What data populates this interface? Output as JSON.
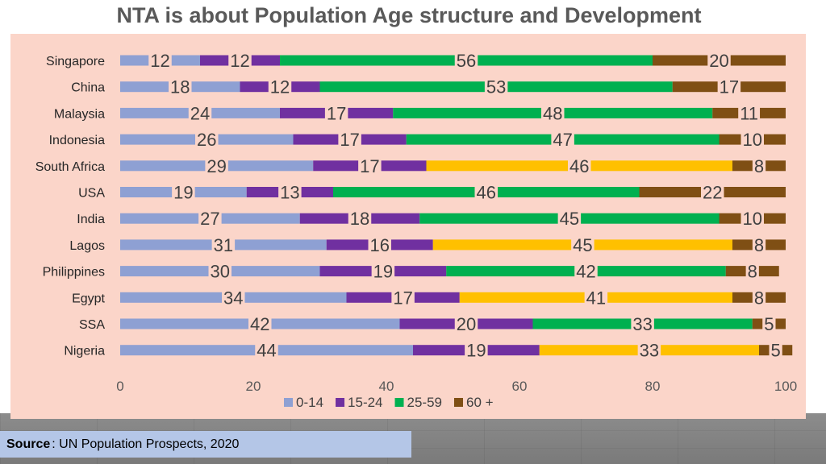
{
  "title": "NTA is about Population Age structure and Development",
  "source": {
    "label": "Source",
    "text": ": UN Population Prospects, 2020"
  },
  "chart_data": {
    "type": "bar",
    "orientation": "horizontal",
    "stacking": "percent",
    "categories": [
      "Singapore",
      "China",
      "Malaysia",
      "Indonesia",
      "South Africa",
      "USA",
      "India",
      "Lagos",
      "Philippines",
      "Egypt",
      "SSA",
      "Nigeria"
    ],
    "series": [
      {
        "name": "0-14",
        "color": "#8ea0d3",
        "values": [
          12,
          18,
          24,
          26,
          29,
          19,
          27,
          31,
          30,
          34,
          42,
          44
        ]
      },
      {
        "name": "15-24",
        "color": "#7030a0",
        "values": [
          12,
          12,
          17,
          17,
          17,
          13,
          18,
          16,
          19,
          17,
          20,
          19
        ]
      },
      {
        "name": "25-59",
        "color": "#00b050",
        "values": [
          56,
          53,
          48,
          47,
          46,
          46,
          45,
          45,
          42,
          41,
          33,
          33
        ]
      },
      {
        "name": "60 +",
        "color": "#7f4f14",
        "values": [
          20,
          17,
          11,
          10,
          8,
          22,
          10,
          8,
          8,
          8,
          5,
          5
        ]
      }
    ],
    "highlight_color": "#ffc000",
    "highlight": [
      {
        "category": "South Africa",
        "series": "25-59"
      },
      {
        "category": "Lagos",
        "series": "25-59"
      },
      {
        "category": "Egypt",
        "series": "25-59"
      },
      {
        "category": "Nigeria",
        "series": "25-59"
      }
    ],
    "xlim": [
      0,
      100
    ],
    "xticks": [
      "0",
      "20",
      "40",
      "60",
      "80",
      "100"
    ],
    "legend_position": "bottom",
    "grid": false
  }
}
